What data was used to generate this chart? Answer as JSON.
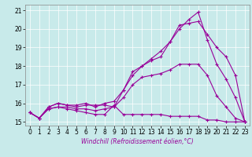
{
  "title": "",
  "xlabel": "Windchill (Refroidissement éolien,°C)",
  "ylabel": "",
  "background_color": "#c8eaea",
  "line_color": "#990099",
  "ylim": [
    14.8,
    21.3
  ],
  "xlim": [
    -0.5,
    23.5
  ],
  "yticks": [
    15,
    16,
    17,
    18,
    19,
    20,
    21
  ],
  "xticks": [
    0,
    1,
    2,
    3,
    4,
    5,
    6,
    7,
    8,
    9,
    10,
    11,
    12,
    13,
    14,
    15,
    16,
    17,
    18,
    19,
    20,
    21,
    22,
    23
  ],
  "series": [
    [
      15.5,
      15.2,
      15.7,
      15.8,
      15.7,
      15.6,
      15.5,
      15.4,
      15.4,
      15.9,
      15.4,
      15.4,
      15.4,
      15.4,
      15.4,
      15.3,
      15.3,
      15.3,
      15.3,
      15.1,
      15.1,
      15.0,
      15.0,
      15.0
    ],
    [
      15.5,
      15.2,
      15.7,
      15.8,
      15.8,
      15.7,
      15.7,
      15.6,
      15.7,
      15.8,
      16.3,
      17.0,
      17.4,
      17.5,
      17.6,
      17.8,
      18.1,
      18.1,
      18.1,
      17.5,
      16.4,
      15.8,
      15.2,
      15.0
    ],
    [
      15.5,
      15.2,
      15.8,
      16.0,
      15.9,
      15.9,
      16.0,
      15.8,
      16.0,
      16.1,
      16.7,
      17.5,
      18.0,
      18.3,
      18.5,
      19.3,
      20.2,
      20.3,
      20.4,
      19.7,
      19.0,
      18.5,
      17.5,
      15.0
    ],
    [
      15.5,
      15.2,
      15.8,
      16.0,
      15.9,
      15.8,
      15.9,
      15.9,
      15.9,
      15.8,
      16.7,
      17.7,
      18.0,
      18.4,
      18.8,
      19.3,
      20.0,
      20.5,
      20.9,
      19.4,
      18.1,
      17.3,
      16.3,
      15.0
    ]
  ],
  "tick_fontsize": 5.5,
  "xlabel_fontsize": 5.5,
  "marker_size": 2.5,
  "linewidth": 0.8
}
